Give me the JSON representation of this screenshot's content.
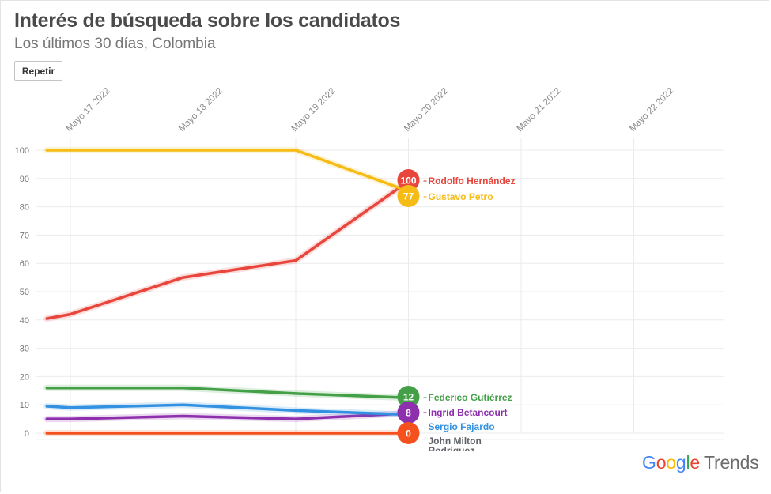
{
  "header": {
    "title": "Interés de búsqueda sobre los candidatos",
    "subtitle": "Los últimos 30 días, Colombia",
    "replay_label": "Repetir"
  },
  "brand": {
    "google_letters": [
      {
        "ch": "G",
        "color": "#4285F4"
      },
      {
        "ch": "o",
        "color": "#EA4335"
      },
      {
        "ch": "o",
        "color": "#FBBC05"
      },
      {
        "ch": "g",
        "color": "#4285F4"
      },
      {
        "ch": "l",
        "color": "#34A853"
      },
      {
        "ch": "e",
        "color": "#EA4335"
      }
    ],
    "trends": "Trends"
  },
  "chart_data": {
    "type": "line",
    "title": "Interés de búsqueda sobre los candidatos",
    "subtitle": "Los últimos 30 días, Colombia",
    "x_ticks": [
      "Mayo 17 2022",
      "Mayo 18 2022",
      "Mayo 19 2022",
      "Mayo 20 2022",
      "Mayo 21 2022",
      "Mayo 22 2022"
    ],
    "y_ticks": [
      0,
      10,
      20,
      30,
      40,
      50,
      60,
      70,
      80,
      90,
      100
    ],
    "ylim": [
      0,
      100
    ],
    "xlim": [
      "Mayo 16 2022 19:00",
      "Mayo 22 2022 21:00"
    ],
    "grid": true,
    "legend": "end-of-line labels",
    "series": [
      {
        "name": "Rodolfo Hernández",
        "end_value": 100,
        "color": "#E8453C",
        "x": [
          "Mayo 16 2022 19:00",
          "Mayo 17 2022",
          "Mayo 18 2022",
          "Mayo 19 2022",
          "Mayo 20 2022"
        ],
        "values": [
          40.5,
          42,
          55,
          61,
          89
        ]
      },
      {
        "name": "Gustavo Petro",
        "end_value": 77,
        "color": "#F6BB14",
        "x": [
          "Mayo 16 2022 19:00",
          "Mayo 17 2022",
          "Mayo 18 2022",
          "Mayo 19 2022",
          "Mayo 20 2022"
        ],
        "values": [
          100,
          100,
          100,
          100,
          85.5
        ]
      },
      {
        "name": "Federico Gutiérrez",
        "end_value": 12,
        "color": "#43A047",
        "x": [
          "Mayo 16 2022 19:00",
          "Mayo 17 2022",
          "Mayo 18 2022",
          "Mayo 19 2022",
          "Mayo 20 2022"
        ],
        "values": [
          16,
          16,
          16,
          14,
          12.5
        ]
      },
      {
        "name": "Sergio Fajardo",
        "end_value": null,
        "color": "#3291E0",
        "x": [
          "Mayo 16 2022 19:00",
          "Mayo 17 2022",
          "Mayo 18 2022",
          "Mayo 19 2022",
          "Mayo 20 2022"
        ],
        "values": [
          9.5,
          9,
          10,
          8,
          6.5
        ]
      },
      {
        "name": "Ingrid Betancourt",
        "end_value": 8,
        "color": "#8E2FAE",
        "x": [
          "Mayo 16 2022 19:00",
          "Mayo 17 2022",
          "Mayo 18 2022",
          "Mayo 19 2022",
          "Mayo 20 2022"
        ],
        "values": [
          5,
          5,
          6,
          5,
          7
        ]
      },
      {
        "name": "John Milton Rodríguez",
        "end_value": 0,
        "color": "#F4511E",
        "x": [
          "Mayo 16 2022 19:00",
          "Mayo 17 2022",
          "Mayo 18 2022",
          "Mayo 19 2022",
          "Mayo 20 2022"
        ],
        "values": [
          0,
          0,
          0,
          0,
          0
        ]
      }
    ],
    "end_labels": [
      {
        "text": "Rodolfo Hernández",
        "badge": "100",
        "color": "#E8453C"
      },
      {
        "text": "Gustavo Petro",
        "badge": "77",
        "color": "#F6BB14"
      },
      {
        "text": "Federico Gutiérrez",
        "badge": "12",
        "color": "#43A047"
      },
      {
        "text": "Ingrid Betancourt",
        "badge": "8",
        "color": "#8E2FAE"
      },
      {
        "text": "Sergio Fajardo",
        "badge": "",
        "color": "#3291E0"
      },
      {
        "text": "John Milton Rodríguez",
        "badge": "0",
        "color": "#F4511E",
        "label_color": "#5F6368"
      }
    ]
  }
}
